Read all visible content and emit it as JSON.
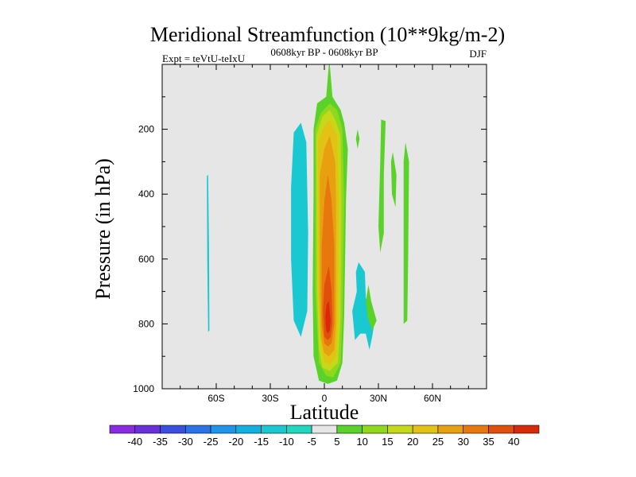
{
  "chart_data": {
    "type": "heatmap",
    "title": "Meridional Streamfunction (10**9kg/m-2)",
    "left_label": "Expt = teVtU-teIxU",
    "center_label": "0608kyr BP - 0608kyr BP",
    "right_label": "DJF",
    "xlabel": "Latitude",
    "ylabel": "Pressure (in hPa)",
    "xlim": [
      -90,
      90
    ],
    "ylim": [
      1000,
      0
    ],
    "x_ticks": [
      {
        "value": -60,
        "label": "60S"
      },
      {
        "value": -30,
        "label": "30S"
      },
      {
        "value": 0,
        "label": "0"
      },
      {
        "value": 30,
        "label": "30N"
      },
      {
        "value": 60,
        "label": "60N"
      }
    ],
    "y_ticks": [
      {
        "value": 200,
        "label": "200"
      },
      {
        "value": 400,
        "label": "400"
      },
      {
        "value": 600,
        "label": "600"
      },
      {
        "value": 800,
        "label": "800"
      },
      {
        "value": 1000,
        "label": "1000"
      }
    ],
    "background_color": "#e6e6e6",
    "colorbar": {
      "labels": [
        "-40",
        "-35",
        "-30",
        "-25",
        "-20",
        "-15",
        "-10",
        "-5",
        "5",
        "10",
        "15",
        "20",
        "25",
        "30",
        "35",
        "40"
      ],
      "colors": [
        "#8a2be2",
        "#6a2fd8",
        "#3a4fe0",
        "#2a72e6",
        "#1f95ea",
        "#12b0e0",
        "#1ac8d2",
        "#20d8c0",
        "#e6e6e6",
        "#5ad22a",
        "#8fd81e",
        "#c6d81a",
        "#e2c214",
        "#e6a010",
        "#e6780e",
        "#e0500c",
        "#d82a0a"
      ]
    },
    "contours": [
      {
        "value": -10,
        "color": "#1ac8d2",
        "points": [
          [
            -64.5,
            340
          ],
          [
            -64,
            560
          ],
          [
            -63.8,
            820
          ],
          [
            -64.5,
            825
          ],
          [
            -65,
            600
          ],
          [
            -65.2,
            345
          ]
        ]
      },
      {
        "value": -10,
        "color": "#1ac8d2",
        "points": [
          [
            -17,
            210
          ],
          [
            -13,
            180
          ],
          [
            -10,
            240
          ],
          [
            -9,
            520
          ],
          [
            -9.5,
            760
          ],
          [
            -13,
            840
          ],
          [
            -17,
            790
          ],
          [
            -18.5,
            600
          ],
          [
            -18.5,
            380
          ]
        ]
      },
      {
        "value": -10,
        "color": "#1ac8d2",
        "points": [
          [
            19,
            610
          ],
          [
            22.5,
            640
          ],
          [
            23,
            720
          ],
          [
            25,
            760
          ],
          [
            28,
            790
          ],
          [
            26.5,
            840
          ],
          [
            25,
            880
          ],
          [
            23,
            830
          ],
          [
            20,
            830
          ],
          [
            17,
            850
          ],
          [
            15.5,
            760
          ],
          [
            18,
            700
          ],
          [
            17.5,
            640
          ]
        ]
      },
      {
        "value": 5,
        "color": "#5ad22a",
        "points": [
          [
            3,
            0
          ],
          [
            4.5,
            100
          ],
          [
            9,
            140
          ],
          [
            11,
            180
          ],
          [
            13,
            260
          ],
          [
            12,
            420
          ],
          [
            11.5,
            600
          ],
          [
            11,
            780
          ],
          [
            10,
            920
          ],
          [
            7,
            975
          ],
          [
            2,
            985
          ],
          [
            -3,
            975
          ],
          [
            -6,
            900
          ],
          [
            -6.5,
            700
          ],
          [
            -6,
            400
          ],
          [
            -6,
            200
          ],
          [
            -4,
            120
          ],
          [
            1,
            100
          ],
          [
            2.5,
            0
          ]
        ]
      },
      {
        "value": 5,
        "color": "#5ad22a",
        "points": [
          [
            31.5,
            170
          ],
          [
            34,
            175
          ],
          [
            33,
            340
          ],
          [
            33,
            520
          ],
          [
            31,
            580
          ],
          [
            30,
            500
          ],
          [
            31,
            300
          ]
        ]
      },
      {
        "value": 5,
        "color": "#5ad22a",
        "points": [
          [
            45,
            240
          ],
          [
            47,
            300
          ],
          [
            46.5,
            600
          ],
          [
            46,
            790
          ],
          [
            44,
            800
          ],
          [
            44,
            500
          ],
          [
            44,
            300
          ]
        ]
      },
      {
        "value": 5,
        "color": "#5ad22a",
        "points": [
          [
            38,
            270
          ],
          [
            40,
            340
          ],
          [
            39.5,
            440
          ],
          [
            37.5,
            400
          ],
          [
            37,
            300
          ]
        ]
      },
      {
        "value": 5,
        "color": "#5ad22a",
        "points": [
          [
            18.5,
            200
          ],
          [
            19.5,
            230
          ],
          [
            18.5,
            260
          ],
          [
            17.5,
            230
          ]
        ]
      },
      {
        "value": 5,
        "color": "#5ad22a",
        "points": [
          [
            24.5,
            680
          ],
          [
            26,
            730
          ],
          [
            29,
            790
          ],
          [
            26.5,
            820
          ],
          [
            24,
            780
          ],
          [
            23,
            730
          ]
        ]
      },
      {
        "value": 10,
        "color": "#8fd81e",
        "points": [
          [
            3,
            120
          ],
          [
            7,
            140
          ],
          [
            10,
            200
          ],
          [
            11,
            420
          ],
          [
            10,
            780
          ],
          [
            9,
            920
          ],
          [
            5,
            965
          ],
          [
            1,
            960
          ],
          [
            -3,
            920
          ],
          [
            -5,
            700
          ],
          [
            -5,
            200
          ],
          [
            -2,
            150
          ]
        ]
      },
      {
        "value": 15,
        "color": "#c6d81a",
        "points": [
          [
            3,
            140
          ],
          [
            6,
            170
          ],
          [
            9,
            220
          ],
          [
            9.5,
            420
          ],
          [
            9,
            780
          ],
          [
            7.5,
            920
          ],
          [
            3,
            945
          ],
          [
            -1,
            935
          ],
          [
            -3,
            880
          ],
          [
            -4,
            700
          ],
          [
            -4.5,
            220
          ],
          [
            -1,
            160
          ]
        ]
      },
      {
        "value": 20,
        "color": "#e2c214",
        "points": [
          [
            3,
            170
          ],
          [
            7,
            220
          ],
          [
            8,
            420
          ],
          [
            7.5,
            780
          ],
          [
            6.5,
            900
          ],
          [
            3,
            925
          ],
          [
            0,
            915
          ],
          [
            -2,
            860
          ],
          [
            -3.5,
            700
          ],
          [
            -3.5,
            240
          ],
          [
            0,
            190
          ]
        ]
      },
      {
        "value": 25,
        "color": "#e6a010",
        "points": [
          [
            3,
            220
          ],
          [
            6,
            300
          ],
          [
            6.5,
            420
          ],
          [
            6.5,
            800
          ],
          [
            5.5,
            880
          ],
          [
            2.5,
            900
          ],
          [
            0,
            890
          ],
          [
            -2,
            840
          ],
          [
            -2.5,
            700
          ],
          [
            -2.5,
            340
          ],
          [
            0,
            260
          ]
        ]
      },
      {
        "value": 30,
        "color": "#e6780e",
        "points": [
          [
            2,
            340
          ],
          [
            4,
            420
          ],
          [
            5.5,
            560
          ],
          [
            5.5,
            800
          ],
          [
            4,
            860
          ],
          [
            2,
            870
          ],
          [
            0,
            860
          ],
          [
            -1.5,
            800
          ],
          [
            -1.5,
            560
          ],
          [
            0,
            420
          ]
        ]
      },
      {
        "value": 35,
        "color": "#e0500c",
        "points": [
          [
            2.5,
            620
          ],
          [
            4,
            700
          ],
          [
            4.5,
            800
          ],
          [
            3.5,
            840
          ],
          [
            2,
            850
          ],
          [
            0,
            840
          ],
          [
            -0.8,
            760
          ],
          [
            0,
            680
          ]
        ]
      },
      {
        "value": 40,
        "color": "#d82a0a",
        "points": [
          [
            2.5,
            730
          ],
          [
            3.5,
            790
          ],
          [
            3,
            820
          ],
          [
            2,
            830
          ],
          [
            1,
            820
          ],
          [
            0.5,
            780
          ],
          [
            1.2,
            740
          ]
        ]
      }
    ]
  }
}
